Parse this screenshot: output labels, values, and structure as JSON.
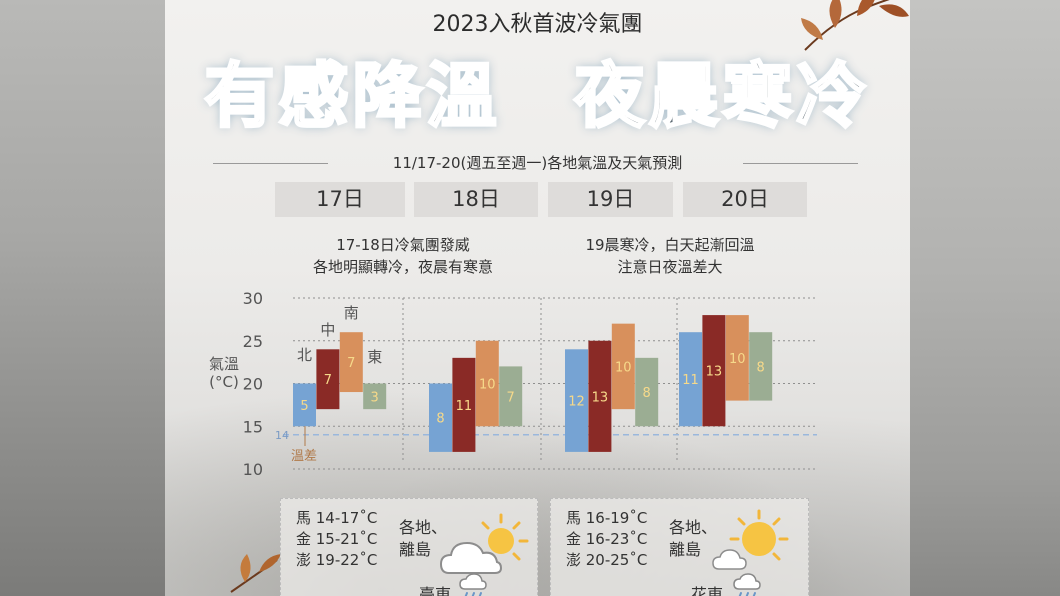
{
  "headline": {
    "top": "2023入秋首波冷氣團",
    "main": "有感降溫　夜晨寒冷",
    "date_range": "11/17-20(週五至週一)各地氣溫及天氣預測"
  },
  "days": [
    "17日",
    "18日",
    "19日",
    "20日"
  ],
  "notes": {
    "left": [
      "17-18日冷氣團發威",
      "各地明顯轉冷，夜晨有寒意"
    ],
    "right": [
      "19晨寒冷，白天起漸回溫",
      "注意日夜溫差大"
    ]
  },
  "colors": {
    "north": "#76a3d3",
    "central": "#8a2a26",
    "south": "#d8905c",
    "east": "#9bad93",
    "value_on_light": "#f6d98a",
    "value_on_dark": "#f6d98a",
    "reference_line": "#9ab7dc"
  },
  "chart_data": {
    "type": "bar",
    "subtype": "floating_range",
    "categories": [
      "17日",
      "18日",
      "19日",
      "20日"
    ],
    "ylabel": "氣溫\n(°C)",
    "y_ticks": [
      10,
      15,
      20,
      25,
      30
    ],
    "ylim": [
      10,
      30
    ],
    "grid": "dotted",
    "series": [
      {
        "name": "北",
        "color": "#76a3d3",
        "ranges": [
          [
            15,
            20
          ],
          [
            12,
            20
          ],
          [
            12,
            24
          ],
          [
            15,
            26
          ]
        ],
        "labels": [
          "5",
          "8",
          "12",
          "11"
        ]
      },
      {
        "name": "中",
        "color": "#8a2a26",
        "ranges": [
          [
            17,
            24
          ],
          [
            12,
            23
          ],
          [
            12,
            25
          ],
          [
            15,
            28
          ]
        ],
        "labels": [
          "7",
          "11",
          "13",
          "13"
        ]
      },
      {
        "name": "南",
        "color": "#d8905c",
        "ranges": [
          [
            19,
            26
          ],
          [
            15,
            25
          ],
          [
            17,
            27
          ],
          [
            18,
            28
          ]
        ],
        "labels": [
          "7",
          "10",
          "10",
          "10"
        ]
      },
      {
        "name": "東",
        "color": "#9bad93",
        "ranges": [
          [
            17,
            20
          ],
          [
            15,
            22
          ],
          [
            15,
            23
          ],
          [
            18,
            26
          ]
        ],
        "labels": [
          "3",
          "7",
          "8",
          "8"
        ]
      }
    ],
    "reference_line": {
      "value": 14,
      "label": "14"
    },
    "annotation": "溫差"
  },
  "forecast_panels": [
    {
      "islands": [
        "馬 14-17˚C",
        "金 15-21˚C",
        "澎 19-22˚C"
      ],
      "region": [
        "各地、",
        "離島"
      ],
      "station": "臺東",
      "icons": [
        "partly-cloudy-icon",
        "rain-icon"
      ]
    },
    {
      "islands": [
        "馬 16-19˚C",
        "金 16-23˚C",
        "澎 20-25˚C"
      ],
      "region": [
        "各地、",
        "離島"
      ],
      "station": "花東",
      "icons": [
        "sunny-cloudy-icon",
        "rain-icon"
      ]
    }
  ]
}
